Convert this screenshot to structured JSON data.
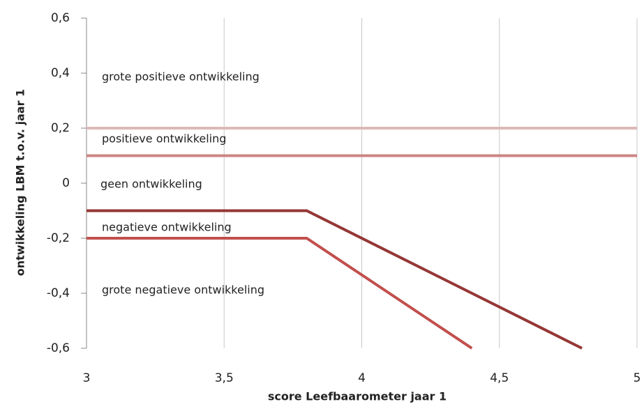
{
  "chart_data": {
    "type": "line",
    "xlabel": "score Leefbaarometer jaar 1",
    "ylabel": "ontwikkeling LBM t.o.v. jaar 1",
    "xlim": [
      3,
      5
    ],
    "ylim": [
      -0.6,
      0.6
    ],
    "xticks": [
      3,
      {
        "value": 3.5,
        "label": "3,5"
      },
      4,
      {
        "value": 4.5,
        "label": "4,5"
      },
      5
    ],
    "yticks": [
      {
        "value": -0.6,
        "label": "-0,6"
      },
      {
        "value": -0.4,
        "label": "-0,4"
      },
      {
        "value": -0.2,
        "label": "-0,2"
      },
      0,
      {
        "value": 0.2,
        "label": "0,2"
      },
      {
        "value": 0.4,
        "label": "0,4"
      },
      {
        "value": 0.6,
        "label": "0,6"
      }
    ],
    "grid": "x",
    "series": [
      {
        "color": "#dcb9b8",
        "x": [
          3,
          5
        ],
        "values": [
          0.2,
          0.2
        ]
      },
      {
        "color": "#cc8584",
        "x": [
          3,
          5
        ],
        "values": [
          0.1,
          0.1
        ]
      },
      {
        "color": "#953735",
        "x": [
          3,
          3.8,
          4.8
        ],
        "values": [
          -0.1,
          -0.1,
          -0.6
        ]
      },
      {
        "color": "#c0504d",
        "x": [
          3,
          3.8,
          4.4
        ],
        "values": [
          -0.2,
          -0.2,
          -0.6
        ]
      }
    ],
    "annotations": [
      "grote positieve ontwikkeling",
      "positieve ontwikkeling",
      "geen ontwikkeling",
      "negatieve ontwikkeling",
      "grote negatieve ontwikkeling"
    ]
  }
}
